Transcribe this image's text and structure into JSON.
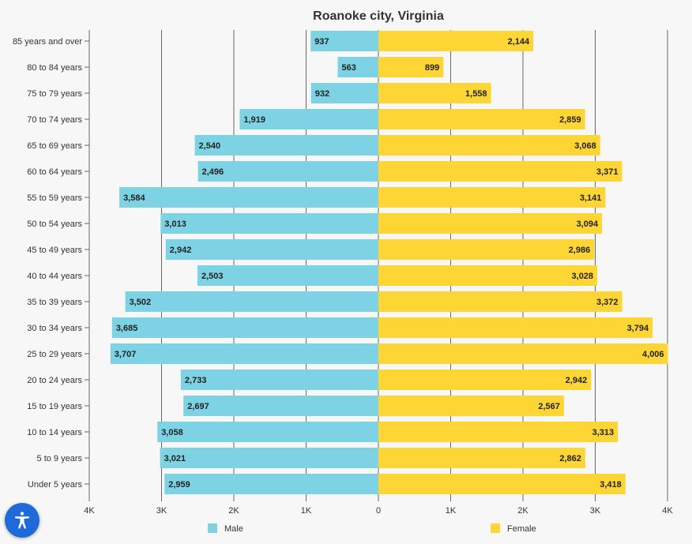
{
  "chart_data": {
    "type": "bar",
    "orientation": "horizontal",
    "layout": "population-pyramid",
    "title": "Roanoke city, Virginia",
    "categories": [
      "85 years and over",
      "80 to 84 years",
      "75 to 79 years",
      "70 to 74 years",
      "65 to 69 years",
      "60 to 64 years",
      "55 to 59 years",
      "50 to 54 years",
      "45 to 49 years",
      "40 to 44 years",
      "35 to 39 years",
      "30 to 34 years",
      "25 to 29 years",
      "20 to 24 years",
      "15 to 19 years",
      "10 to 14 years",
      "5 to 9 years",
      "Under 5 years"
    ],
    "series": [
      {
        "name": "Male",
        "color": "#7dd3e3",
        "values": [
          937,
          563,
          932,
          1919,
          2540,
          2496,
          3584,
          3013,
          2942,
          2503,
          3502,
          3685,
          3707,
          2733,
          2697,
          3058,
          3021,
          2959
        ],
        "labels": [
          "937",
          "563",
          "932",
          "1,919",
          "2,540",
          "2,496",
          "3,584",
          "3,013",
          "2,942",
          "2,503",
          "3,502",
          "3,685",
          "3,707",
          "2,733",
          "2,697",
          "3,058",
          "3,021",
          "2,959"
        ]
      },
      {
        "name": "Female",
        "color": "#fdd535",
        "values": [
          2144,
          899,
          1558,
          2859,
          3068,
          3371,
          3141,
          3094,
          2986,
          3028,
          3372,
          3794,
          4006,
          2942,
          2567,
          3313,
          2862,
          3418
        ],
        "labels": [
          "2,144",
          "899",
          "1,558",
          "2,859",
          "3,068",
          "3,371",
          "3,141",
          "3,094",
          "2,986",
          "3,028",
          "3,372",
          "3,794",
          "4,006",
          "2,942",
          "2,567",
          "3,313",
          "2,862",
          "3,418"
        ]
      }
    ],
    "xlim": [
      -4000,
      4000
    ],
    "x_ticks": [
      -4000,
      -3000,
      -2000,
      -1000,
      0,
      1000,
      2000,
      3000,
      4000
    ],
    "x_tick_labels": [
      "4K",
      "3K",
      "2K",
      "1K",
      "0",
      "1K",
      "2K",
      "3K",
      "4K"
    ],
    "grid": true,
    "legend_position": "bottom"
  },
  "accessibility_button": {
    "icon": "accessibility-icon",
    "color": "#1f6ad8"
  }
}
